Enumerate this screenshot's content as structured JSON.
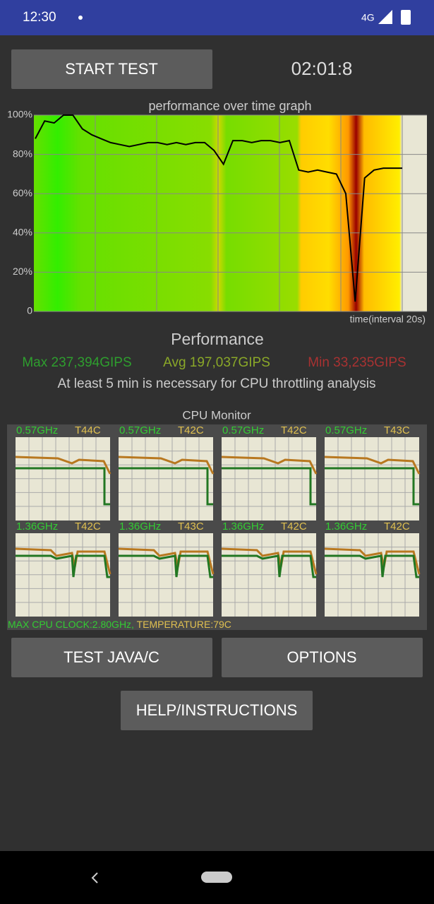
{
  "status_bar": {
    "time": "12:30",
    "network": "4G"
  },
  "start_button": "START TEST",
  "timer": "02:01:8",
  "performance_graph": {
    "title": "performance over time graph",
    "x_label": "time(interval 20s)",
    "ylim": [
      0,
      100
    ],
    "yticks": [
      0,
      {
        "value": 20,
        "label": "20%"
      },
      {
        "value": 40,
        "label": "40%"
      },
      {
        "value": 60,
        "label": "60%"
      },
      {
        "value": 80,
        "label": "80%"
      },
      {
        "value": 100,
        "label": "100%"
      }
    ],
    "values": [
      88,
      97,
      96,
      100,
      100,
      93,
      90,
      88,
      86,
      85,
      84,
      85,
      86,
      86,
      85,
      86,
      85,
      86,
      86,
      82,
      75,
      87,
      87,
      86,
      87,
      87,
      86,
      87,
      72,
      71,
      72,
      71,
      70,
      60,
      5,
      68,
      72,
      73,
      73,
      73
    ]
  },
  "performance": {
    "heading": "Performance",
    "max": "Max 237,394GIPS",
    "avg": "Avg 197,037GIPS",
    "min": "Min 33,235GIPS",
    "note": "At least 5 min is necessary for CPU throttling analysis"
  },
  "cpu_monitor": {
    "title": "CPU Monitor",
    "cores": [
      {
        "freq": "0.57GHz",
        "temp": "T44C"
      },
      {
        "freq": "0.57GHz",
        "temp": "T42C"
      },
      {
        "freq": "0.57GHz",
        "temp": "T42C"
      },
      {
        "freq": "0.57GHz",
        "temp": "T43C"
      },
      {
        "freq": "1.36GHz",
        "temp": "T42C"
      },
      {
        "freq": "1.36GHz",
        "temp": "T43C"
      },
      {
        "freq": "1.36GHz",
        "temp": "T42C"
      },
      {
        "freq": "1.36GHz",
        "temp": "T42C"
      }
    ],
    "max_clock": "MAX CPU CLOCK:2.80GHz,",
    "temperature": "TEMPERATURE:79C"
  },
  "buttons": {
    "test": "TEST JAVA/C",
    "options": "OPTIONS",
    "help": "HELP/INSTRUCTIONS"
  }
}
